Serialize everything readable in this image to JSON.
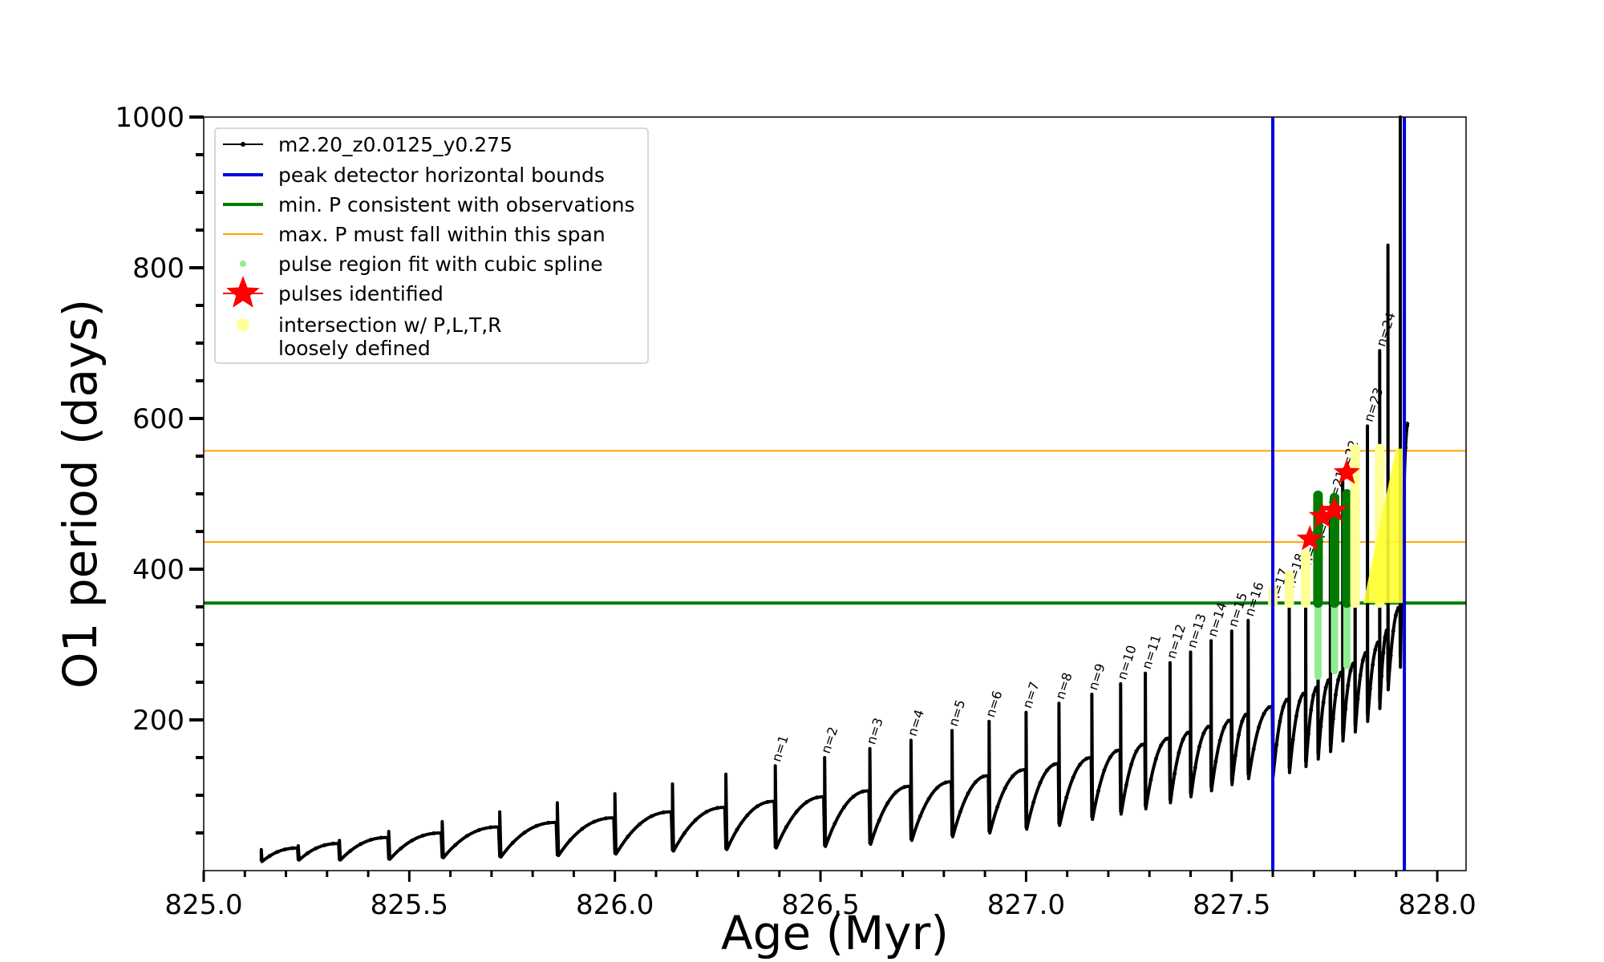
{
  "chart_data": {
    "type": "line",
    "xlabel": "Age (Myr)",
    "ylabel": "O1 period (days)",
    "xlim": [
      825.0,
      828.07
    ],
    "ylim": [
      0,
      1000
    ],
    "x_ticks": [
      825.0,
      825.5,
      826.0,
      826.5,
      827.0,
      827.5,
      828.0
    ],
    "x_tick_labels": [
      "825.0",
      "825.5",
      "826.0",
      "826.5",
      "827.0",
      "827.5",
      "828.0"
    ],
    "y_ticks": [
      200,
      400,
      600,
      800,
      1000
    ],
    "y_tick_labels": [
      "200",
      "400",
      "600",
      "800",
      "1000"
    ],
    "grid": false,
    "legend_position": "top-left",
    "legend": [
      {
        "label": "m2.20_z0.0125_y0.275",
        "color": "#000000",
        "style": "line-dot"
      },
      {
        "label": "peak detector horizontal bounds",
        "color": "#0000dd",
        "style": "line"
      },
      {
        "label": "min. P consistent with observations",
        "color": "#007a00",
        "style": "line"
      },
      {
        "label": "max. P must fall within this span",
        "color": "#ffa500",
        "style": "thin-line"
      },
      {
        "label": "pulse region fit with cubic spline",
        "color": "#90ee90",
        "style": "dot"
      },
      {
        "label": "pulses identified",
        "color": "#ff0000",
        "style": "star"
      },
      {
        "label": "intersection w/ P,L,T,R",
        "label2": "loosely defined",
        "color": "#ffff99",
        "style": "dot"
      }
    ],
    "series": [
      {
        "name": "m2.20_z0.0125_y0.275",
        "color": "#000000",
        "pulses": [
          {
            "label": "",
            "x": 825.14,
            "peak": 28,
            "base": 12,
            "end": 30
          },
          {
            "label": "",
            "x": 825.23,
            "peak": 33,
            "base": 14,
            "end": 36
          },
          {
            "label": "",
            "x": 825.33,
            "peak": 40,
            "base": 14,
            "end": 44
          },
          {
            "label": "",
            "x": 825.45,
            "peak": 52,
            "base": 15,
            "end": 50
          },
          {
            "label": "",
            "x": 825.58,
            "peak": 65,
            "base": 17,
            "end": 58
          },
          {
            "label": "",
            "x": 825.72,
            "peak": 78,
            "base": 18,
            "end": 64
          },
          {
            "label": "",
            "x": 825.86,
            "peak": 90,
            "base": 20,
            "end": 70
          },
          {
            "label": "",
            "x": 826.0,
            "peak": 102,
            "base": 22,
            "end": 78
          },
          {
            "label": "",
            "x": 826.14,
            "peak": 115,
            "base": 26,
            "end": 84
          },
          {
            "label": "",
            "x": 826.27,
            "peak": 128,
            "base": 28,
            "end": 92
          },
          {
            "label": "n=1",
            "x": 826.39,
            "peak": 139,
            "base": 30,
            "end": 98
          },
          {
            "label": "n=2",
            "x": 826.51,
            "peak": 150,
            "base": 32,
            "end": 106
          },
          {
            "label": "n=3",
            "x": 826.62,
            "peak": 162,
            "base": 35,
            "end": 112
          },
          {
            "label": "n=4",
            "x": 826.72,
            "peak": 173,
            "base": 40,
            "end": 118
          },
          {
            "label": "n=5",
            "x": 826.82,
            "peak": 186,
            "base": 45,
            "end": 126
          },
          {
            "label": "n=6",
            "x": 826.91,
            "peak": 198,
            "base": 50,
            "end": 134
          },
          {
            "label": "n=7",
            "x": 827.0,
            "peak": 210,
            "base": 55,
            "end": 142
          },
          {
            "label": "n=8",
            "x": 827.08,
            "peak": 222,
            "base": 60,
            "end": 150
          },
          {
            "label": "n=9",
            "x": 827.16,
            "peak": 234,
            "base": 68,
            "end": 160
          },
          {
            "label": "n=10",
            "x": 827.23,
            "peak": 248,
            "base": 75,
            "end": 168
          },
          {
            "label": "n=11",
            "x": 827.29,
            "peak": 262,
            "base": 82,
            "end": 176
          },
          {
            "label": "n=12",
            "x": 827.35,
            "peak": 276,
            "base": 90,
            "end": 184
          },
          {
            "label": "n=13",
            "x": 827.4,
            "peak": 290,
            "base": 98,
            "end": 192
          },
          {
            "label": "n=14",
            "x": 827.45,
            "peak": 305,
            "base": 106,
            "end": 200
          },
          {
            "label": "n=15",
            "x": 827.5,
            "peak": 318,
            "base": 114,
            "end": 208
          },
          {
            "label": "n=16",
            "x": 827.54,
            "peak": 332,
            "base": 122,
            "end": 218
          },
          {
            "label": "n=17",
            "x": 827.6,
            "peak": 350,
            "base": 125,
            "end": 228
          },
          {
            "label": "n=18",
            "x": 827.64,
            "peak": 370,
            "base": 130,
            "end": 236
          },
          {
            "label": "n=19",
            "x": 827.68,
            "peak": 400,
            "base": 138,
            "end": 244
          },
          {
            "label": "n=20",
            "x": 827.71,
            "peak": 430,
            "base": 148,
            "end": 254
          },
          {
            "label": "n=21",
            "x": 827.74,
            "peak": 480,
            "base": 158,
            "end": 264
          },
          {
            "label": "n=22",
            "x": 827.77,
            "peak": 520,
            "base": 172,
            "end": 276
          },
          {
            "label": "",
            "x": 827.8,
            "peak": 560,
            "base": 184,
            "end": 290
          },
          {
            "label": "n=23",
            "x": 827.83,
            "peak": 590,
            "base": 198,
            "end": 304
          },
          {
            "label": "n=24",
            "x": 827.86,
            "peak": 690,
            "base": 215,
            "end": 320
          },
          {
            "label": "",
            "x": 827.88,
            "peak": 830,
            "base": 240,
            "end": 350
          },
          {
            "label": "",
            "x": 827.91,
            "peak": 1000,
            "base": 270,
            "end": 595
          }
        ]
      }
    ],
    "peak_detector_bounds_x": [
      827.6,
      827.92
    ],
    "min_P_observations": 355,
    "max_P_span": [
      436,
      557
    ],
    "cubic_spline_pulses": [
      {
        "x": 827.71,
        "low": 258,
        "high": 498
      },
      {
        "x": 827.75,
        "low": 265,
        "high": 495
      },
      {
        "x": 827.78,
        "low": 272,
        "high": 500
      }
    ],
    "pulses_identified": [
      {
        "label": "n=19",
        "x": 827.69,
        "y": 440
      },
      {
        "label": "n=20",
        "x": 827.72,
        "y": 470
      },
      {
        "label": "n=21",
        "x": 827.75,
        "y": 478
      },
      {
        "label": "n=22",
        "x": 827.78,
        "y": 528
      }
    ]
  }
}
